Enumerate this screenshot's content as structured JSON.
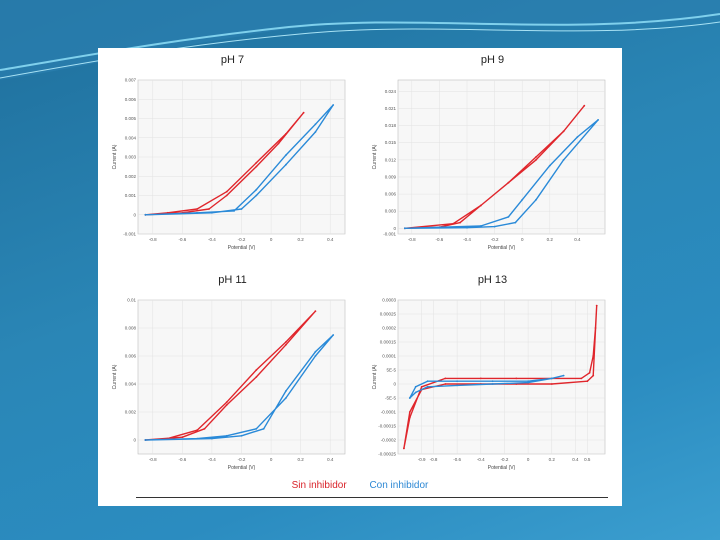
{
  "legend": {
    "sin": "Sin inhibidor",
    "con": "Con inhibidor"
  },
  "colors": {
    "sin": "#e0262c",
    "con": "#2a8ad8"
  },
  "chart_data": [
    {
      "type": "line",
      "title": "pH 7",
      "xlabel": "Potential (V)",
      "ylabel": "Current (A)",
      "xlim": [
        -0.9,
        0.5
      ],
      "ylim": [
        -0.001,
        0.007
      ],
      "xticks": [
        "-0.8",
        "-0.6",
        "-0.4",
        "-0.2",
        "0",
        "0.2",
        "0.4"
      ],
      "yticks": [
        "-0.001",
        "0",
        "0.001",
        "0.002",
        "0.003",
        "0.004",
        "0.005",
        "0.006",
        "0.007"
      ],
      "series": [
        {
          "name": "Sin inhibidor",
          "x": [
            -0.85,
            -0.6,
            -0.42,
            -0.3,
            -0.1,
            0.05,
            0.22,
            0.1,
            -0.1,
            -0.3,
            -0.5,
            -0.7,
            -0.85
          ],
          "y": [
            0,
            0.0001,
            0.0003,
            0.001,
            0.0025,
            0.0037,
            0.0053,
            0.0042,
            0.0027,
            0.0012,
            0.0003,
            0.0001,
            0
          ]
        },
        {
          "name": "Con inhibidor",
          "x": [
            -0.85,
            -0.4,
            -0.2,
            -0.1,
            0.1,
            0.3,
            0.42,
            0.3,
            0.1,
            -0.1,
            -0.25,
            -0.5,
            -0.85
          ],
          "y": [
            0,
            0.0001,
            0.0003,
            0.001,
            0.0026,
            0.0043,
            0.0057,
            0.0047,
            0.0031,
            0.0013,
            0.0002,
            0.0001,
            0
          ]
        }
      ]
    },
    {
      "type": "line",
      "title": "pH 9",
      "xlabel": "Potential (V)",
      "ylabel": "Current (A)",
      "xlim": [
        -0.9,
        0.6
      ],
      "ylim": [
        -0.001,
        0.026
      ],
      "xticks": [
        "-0.8",
        "-0.6",
        "-0.4",
        "-0.2",
        "0",
        "0.2",
        "0.4"
      ],
      "yticks": [
        "-0.001",
        "0",
        "0.003",
        "0.006",
        "0.009",
        "0.012",
        "0.015",
        "0.018",
        "0.021",
        "0.024"
      ],
      "series": [
        {
          "name": "Sin inhibidor",
          "x": [
            -0.85,
            -0.6,
            -0.45,
            -0.3,
            -0.1,
            0.1,
            0.3,
            0.45,
            0.3,
            0.1,
            -0.1,
            -0.3,
            -0.5,
            -0.85
          ],
          "y": [
            0,
            0.0002,
            0.001,
            0.004,
            0.008,
            0.012,
            0.017,
            0.0215,
            0.017,
            0.0125,
            0.008,
            0.004,
            0.0008,
            0
          ]
        },
        {
          "name": "Con inhibidor",
          "x": [
            -0.85,
            -0.4,
            -0.2,
            -0.05,
            0.1,
            0.3,
            0.55,
            0.4,
            0.2,
            0,
            -0.1,
            -0.3,
            -0.85
          ],
          "y": [
            0,
            0.0001,
            0.0003,
            0.001,
            0.005,
            0.012,
            0.019,
            0.016,
            0.011,
            0.005,
            0.002,
            0.0004,
            0
          ]
        }
      ]
    },
    {
      "type": "line",
      "title": "pH 11",
      "xlabel": "Potential (V)",
      "ylabel": "Current (A)",
      "xlim": [
        -0.9,
        0.5
      ],
      "ylim": [
        -0.001,
        0.01
      ],
      "xticks": [
        "-0.8",
        "-0.6",
        "-0.4",
        "-0.2",
        "0",
        "0.2",
        "0.4"
      ],
      "yticks": [
        "0",
        "0.002",
        "0.004",
        "0.006",
        "0.008",
        "0.01"
      ],
      "series": [
        {
          "name": "Sin inhibidor",
          "x": [
            -0.85,
            -0.6,
            -0.45,
            -0.3,
            -0.1,
            0.1,
            0.3,
            0.1,
            -0.1,
            -0.3,
            -0.5,
            -0.7,
            -0.85
          ],
          "y": [
            0,
            0.0002,
            0.0008,
            0.0025,
            0.0045,
            0.0068,
            0.0092,
            0.007,
            0.005,
            0.0027,
            0.0007,
            0.0001,
            0
          ]
        },
        {
          "name": "Con inhibidor",
          "x": [
            -0.85,
            -0.4,
            -0.2,
            -0.05,
            0.1,
            0.3,
            0.42,
            0.3,
            0.1,
            -0.1,
            -0.3,
            -0.5,
            -0.85
          ],
          "y": [
            0,
            0.0001,
            0.0003,
            0.0008,
            0.0035,
            0.0063,
            0.0075,
            0.006,
            0.003,
            0.0008,
            0.0003,
            0.0001,
            0
          ]
        }
      ]
    },
    {
      "type": "line",
      "title": "pH 13",
      "xlabel": "Potential (V)",
      "ylabel": "Current (A)",
      "xlim": [
        -1.1,
        0.65
      ],
      "ylim": [
        -0.00025,
        0.0003
      ],
      "xticks": [
        "-0.9",
        "-0.8",
        "-0.6",
        "-0.4",
        "-0.2",
        "0",
        "0.2",
        "0.4",
        "0.5"
      ],
      "yticks": [
        "-0.00025",
        "-0.0002",
        "-0.00015",
        "-0.0001",
        "-5E-5",
        "0",
        "5E-5",
        "0.0001",
        "0.00015",
        "0.0002",
        "0.00025",
        "0.0003"
      ],
      "series": [
        {
          "name": "Sin inhibidor",
          "x": [
            -1.05,
            -1.0,
            -0.9,
            -0.7,
            -0.4,
            -0.1,
            0.2,
            0.45,
            0.52,
            0.55,
            0.57,
            0.58,
            0.55,
            0.5,
            0.2,
            -0.1,
            -0.4,
            -0.7,
            -0.9,
            -1.0,
            -1.05
          ],
          "y": [
            -0.00023,
            -0.00012,
            -1e-05,
            2e-05,
            2e-05,
            2e-05,
            2e-05,
            2e-05,
            4e-05,
            0.0001,
            0.0002,
            0.00028,
            3e-05,
            1e-05,
            0,
            0,
            0,
            0,
            -2e-05,
            -0.0001,
            -0.00023
          ]
        },
        {
          "name": "Con inhibidor",
          "x": [
            -1.0,
            -0.95,
            -0.85,
            -0.6,
            -0.3,
            0,
            0.2,
            0.3,
            0.2,
            0,
            -0.3,
            -0.6,
            -0.85,
            -0.95,
            -1.0
          ],
          "y": [
            -5e-05,
            -1e-05,
            1e-05,
            1e-05,
            1e-05,
            1e-05,
            2e-05,
            3e-05,
            2e-05,
            5e-06,
            0,
            -5e-06,
            -1e-05,
            -3e-05,
            -5e-05
          ]
        }
      ]
    }
  ]
}
